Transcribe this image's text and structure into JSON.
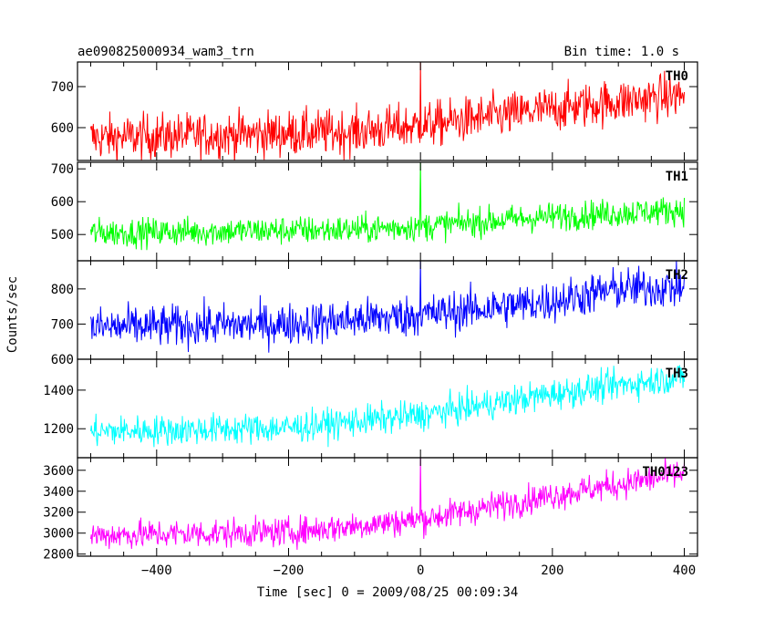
{
  "header": {
    "title": "ae090825000934_wam3_trn",
    "bin_time": "Bin time: 1.0 s"
  },
  "axes": {
    "xlabel": "Time [sec] 0 = 2009/08/25 00:09:34",
    "ylabel": "Counts/sec"
  },
  "chart_data": {
    "type": "line",
    "title": "ae090825000934_wam3_trn",
    "subtitle": "Bin time: 1.0 s",
    "xlabel": "Time [sec] 0 = 2009/08/25 00:09:34",
    "ylabel": "Counts/sec",
    "xlim": [
      -520,
      420
    ],
    "x_ticks": [
      -400,
      -200,
      0,
      200,
      400
    ],
    "x_tick_labels": [
      "−400",
      "−200",
      "0",
      "200",
      "400"
    ],
    "x_range_data": [
      -500,
      400
    ],
    "grid": false,
    "panels": [
      {
        "name": "TH0",
        "color": "#ff0000",
        "ylim": [
          520,
          760
        ],
        "y_ticks": [
          600,
          700
        ],
        "y_tick_labels": [
          "600",
          "700"
        ],
        "trend": [
          [
            -500,
            575
          ],
          [
            -100,
            590
          ],
          [
            0,
            605
          ],
          [
            100,
            625
          ],
          [
            250,
            655
          ],
          [
            400,
            680
          ]
        ],
        "noise": 28,
        "spike": {
          "x": 0,
          "y": 760
        }
      },
      {
        "name": "TH1",
        "color": "#00ff00",
        "ylim": [
          420,
          720
        ],
        "y_ticks": [
          500,
          600,
          700
        ],
        "y_tick_labels": [
          "500",
          "600",
          "700"
        ],
        "trend": [
          [
            -500,
            505
          ],
          [
            -100,
            515
          ],
          [
            0,
            525
          ],
          [
            200,
            555
          ],
          [
            400,
            575
          ]
        ],
        "noise": 22,
        "spike": {
          "x": 0,
          "y": 720
        }
      },
      {
        "name": "TH2",
        "color": "#0000ff",
        "ylim": [
          600,
          880
        ],
        "y_ticks": [
          600,
          700,
          800
        ],
        "y_tick_labels": [
          "600",
          "700",
          "800"
        ],
        "trend": [
          [
            -500,
            690
          ],
          [
            -200,
            700
          ],
          [
            0,
            725
          ],
          [
            200,
            765
          ],
          [
            300,
            800
          ],
          [
            400,
            805
          ]
        ],
        "noise": 30,
        "spike": {
          "x": 0,
          "y": 880
        }
      },
      {
        "name": "TH3",
        "color": "#00ffff",
        "ylim": [
          1050,
          1560
        ],
        "y_ticks": [
          1200,
          1400
        ],
        "y_tick_labels": [
          "1200",
          "1400"
        ],
        "trend": [
          [
            -500,
            1185
          ],
          [
            -200,
            1205
          ],
          [
            0,
            1270
          ],
          [
            200,
            1380
          ],
          [
            400,
            1470
          ]
        ],
        "noise": 40,
        "spike": null
      },
      {
        "name": "TH0123",
        "color": "#ff00ff",
        "ylim": [
          2780,
          3720
        ],
        "y_ticks": [
          2800,
          3000,
          3200,
          3400,
          3600
        ],
        "y_tick_labels": [
          "2800",
          "3000",
          "3200",
          "3400",
          "3600"
        ],
        "trend": [
          [
            -500,
            2980
          ],
          [
            -200,
            3010
          ],
          [
            0,
            3130
          ],
          [
            200,
            3360
          ],
          [
            400,
            3570
          ]
        ],
        "noise": 70,
        "spike": {
          "x": 0,
          "y": 3720
        }
      }
    ]
  }
}
